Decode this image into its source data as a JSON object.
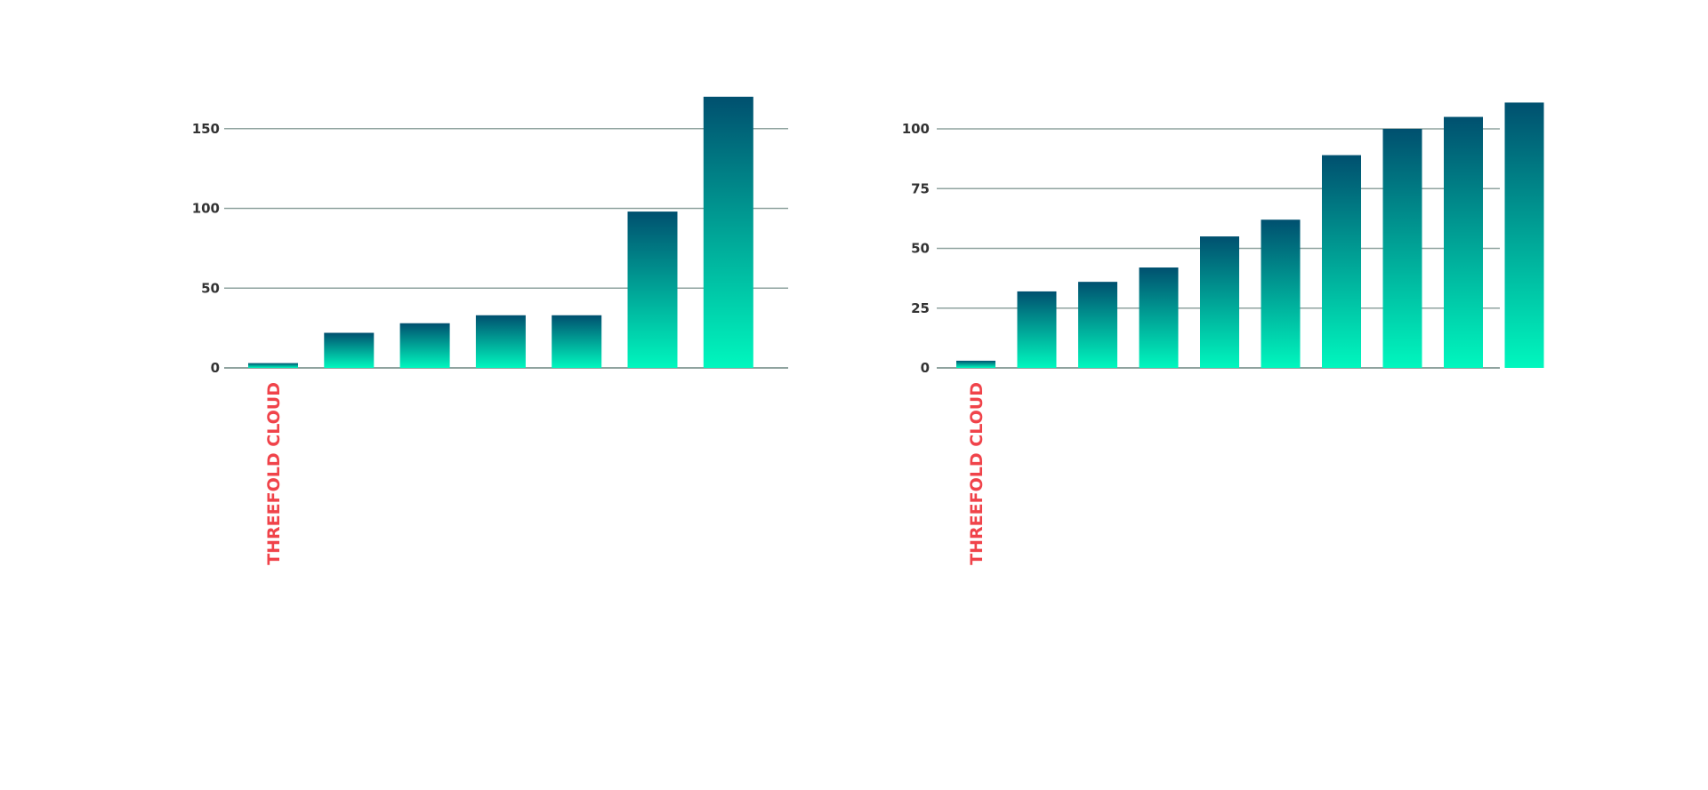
{
  "colors": {
    "bar_top": "#00506f",
    "bar_bottom": "#00f7be",
    "grid": "#8fa39f",
    "label": "#f0434a"
  },
  "chart_data": [
    {
      "type": "bar",
      "categories": [
        "THREEFOLD CLOUD",
        "",
        "",
        "",
        "",
        "",
        ""
      ],
      "values": [
        3,
        22,
        28,
        33,
        33,
        98,
        170
      ],
      "yticks": [
        0,
        50,
        100,
        150
      ],
      "ylim": [
        0,
        170
      ],
      "grid": true,
      "xlabel": "",
      "ylabel": ""
    },
    {
      "type": "bar",
      "categories": [
        "THREEFOLD CLOUD",
        "",
        "",
        "",
        "",
        "",
        "",
        "",
        "",
        ""
      ],
      "values": [
        3,
        32,
        36,
        42,
        55,
        62,
        89,
        100,
        105,
        111
      ],
      "yticks": [
        0,
        25,
        50,
        75,
        100
      ],
      "ylim": [
        0,
        111
      ],
      "grid": true,
      "xlabel": "",
      "ylabel": ""
    }
  ]
}
